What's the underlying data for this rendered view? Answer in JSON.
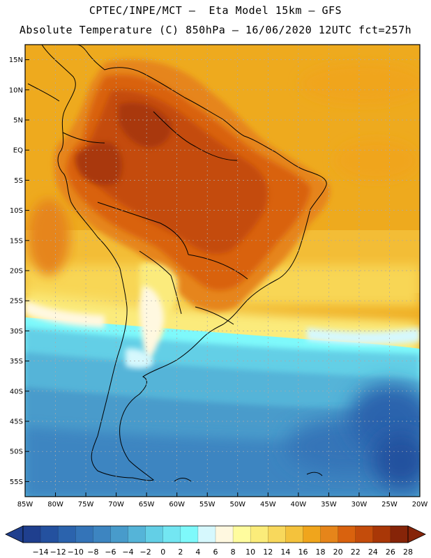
{
  "header": {
    "line1": "CPTEC/INPE/MCT –  Eta Model 15km – GFS",
    "line2": "Absolute Temperature (C) 850hPa – 16/06/2020 12UTC fct=257h"
  },
  "map": {
    "lat_labels": [
      "15N",
      "10N",
      "5N",
      "EQ",
      "5S",
      "10S",
      "15S",
      "20S",
      "25S",
      "30S",
      "35S",
      "40S",
      "45S",
      "50S",
      "55S"
    ],
    "lon_labels": [
      "85W",
      "80W",
      "75W",
      "70W",
      "65W",
      "60W",
      "55W",
      "50W",
      "45W",
      "40W",
      "35W",
      "30W",
      "25W",
      "20W"
    ],
    "lat_extent": [
      17.5,
      -57.5
    ],
    "lon_extent": [
      -85,
      -20
    ],
    "colors": {
      "ocean_tropical": "#eeaa1e",
      "south_cold": "#3682c2",
      "land_hot": "#c9540e",
      "amazon_core": "#b33e0d",
      "coast_line": "#000000"
    }
  },
  "colorbar": {
    "labels": [
      "-14",
      "-12",
      "-10",
      "-8",
      "-6",
      "-4",
      "-2",
      "0",
      "2",
      "4",
      "6",
      "8",
      "10",
      "12",
      "14",
      "16",
      "18",
      "20",
      "22",
      "24",
      "26",
      "28"
    ],
    "colors": [
      "#1f3f8e",
      "#24519f",
      "#2b63ad",
      "#3474b8",
      "#3d85c1",
      "#489bcb",
      "#55b4d8",
      "#63cfe6",
      "#73e6f2",
      "#7ef9fb",
      "#d6f8fd",
      "#fff8e0",
      "#fffc9e",
      "#fbec7a",
      "#f8d85c",
      "#f4c23c",
      "#f0a51c",
      "#e6851a",
      "#d9620e",
      "#c44c0b",
      "#a93707",
      "#862408"
    ]
  }
}
